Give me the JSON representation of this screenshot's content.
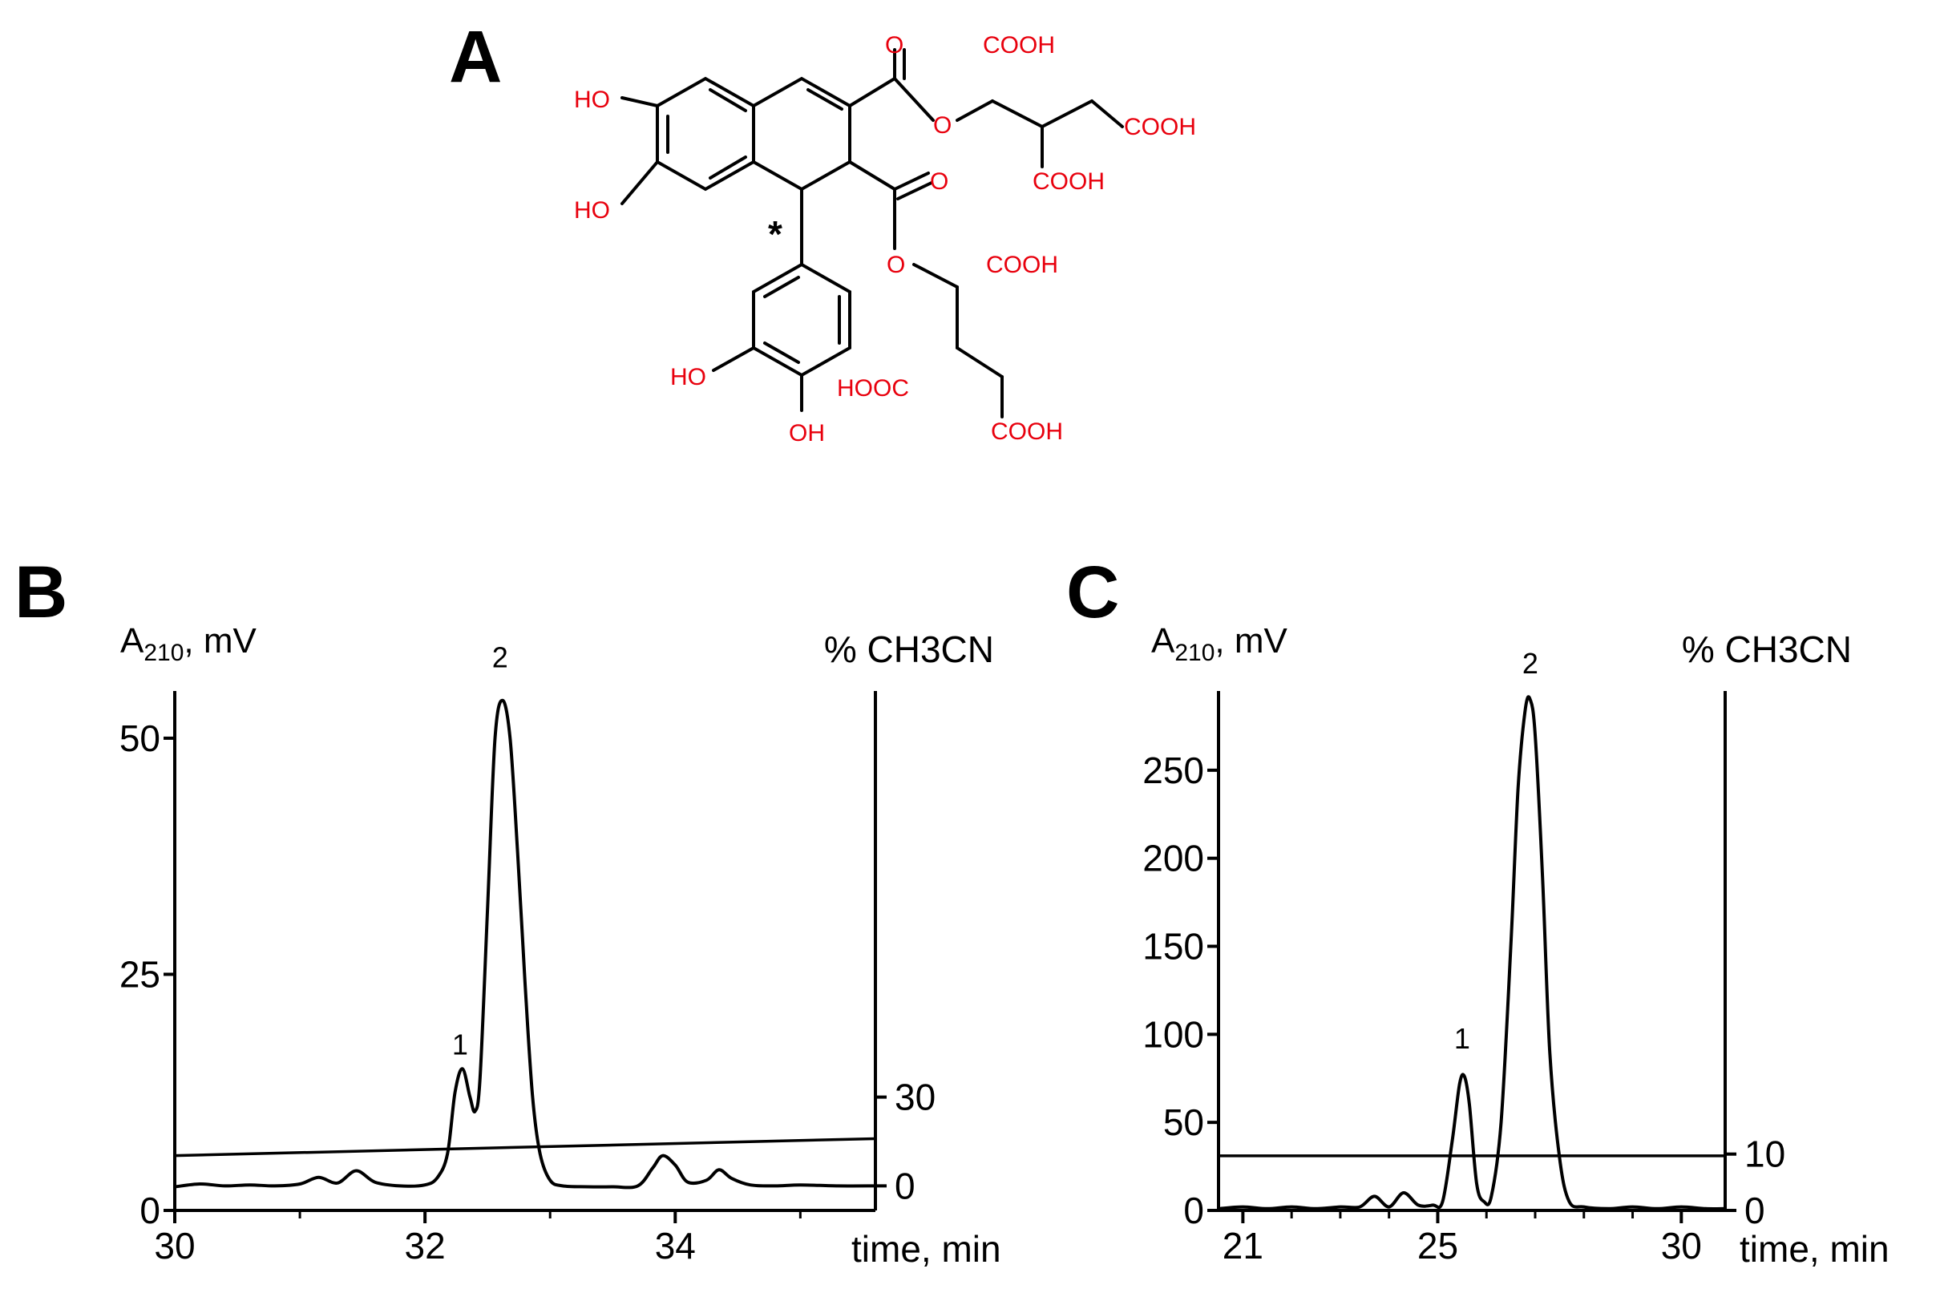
{
  "panel_labels": {
    "a": "A",
    "b": "B",
    "c": "C"
  },
  "structure": {
    "labels": {
      "ho1": "HO",
      "ho2": "HO",
      "ho3": "HO",
      "oh4": "OH",
      "o_top_carbonyl": "O",
      "o_top_ester": "O",
      "o_mid_carbonyl": "O",
      "o_mid_ester": "O",
      "cooh1": "COOH",
      "cooh2": "COOH",
      "cooh3": "COOH",
      "cooh4": "COOH",
      "hooc5": "HOOC",
      "cooh6": "COOH",
      "star": "*"
    },
    "colors": {
      "heteroatom": "#e8000d",
      "bond": "#000000"
    }
  },
  "chart_data": [
    {
      "panel": "B",
      "type": "line",
      "left_axis_label_main": "A",
      "left_axis_label_sub": "210",
      "left_axis_label_rest": ", mV",
      "right_axis_label": "% CH3CN",
      "xlabel": "time, min",
      "xlim": [
        30,
        35.6
      ],
      "ylim": [
        0,
        55
      ],
      "y_ticks": [
        0,
        25,
        50
      ],
      "y_tick_labels": [
        "0",
        "25",
        "50"
      ],
      "x_ticks": [
        30,
        32,
        34
      ],
      "x_tick_labels": [
        "30",
        "32",
        "34"
      ],
      "x_minor_ticks": [
        31,
        33,
        35
      ],
      "right_ticks_y": [
        2.6,
        12
      ],
      "right_tick_labels": [
        "0",
        "30"
      ],
      "peak_labels": [
        {
          "text": "1",
          "x": 32.28,
          "y": 16.5
        },
        {
          "text": "2",
          "x": 32.6,
          "y": 57.5
        }
      ],
      "gradient": {
        "x": [
          30,
          35.6
        ],
        "y": [
          5.8,
          7.6
        ]
      },
      "series": [
        {
          "x": [
            30.0,
            30.2,
            30.4,
            30.6,
            30.8,
            31.0,
            31.15,
            31.3,
            31.45,
            31.6,
            31.8,
            32.0,
            32.1,
            32.18,
            32.24,
            32.3,
            32.36,
            32.4,
            32.44,
            32.5,
            32.56,
            32.62,
            32.68,
            32.74,
            32.8,
            32.86,
            32.92,
            33.0,
            33.1,
            33.3,
            33.5,
            33.7,
            33.82,
            33.9,
            34.0,
            34.1,
            34.25,
            34.35,
            34.45,
            34.6,
            34.8,
            35.0,
            35.3,
            35.6
          ],
          "y": [
            2.5,
            2.8,
            2.6,
            2.7,
            2.6,
            2.8,
            3.5,
            2.9,
            4.2,
            3.0,
            2.6,
            2.7,
            3.5,
            6.0,
            12.5,
            15.0,
            12.0,
            10.5,
            14.0,
            32.0,
            50.0,
            54.0,
            50.0,
            38.0,
            24.0,
            12.0,
            6.0,
            3.2,
            2.6,
            2.5,
            2.5,
            2.6,
            4.5,
            5.8,
            4.8,
            3.0,
            3.2,
            4.3,
            3.4,
            2.7,
            2.6,
            2.7,
            2.6,
            2.6
          ]
        }
      ]
    },
    {
      "panel": "C",
      "type": "line",
      "left_axis_label_main": "A",
      "left_axis_label_sub": "210",
      "left_axis_label_rest": ", mV",
      "right_axis_label": "% CH3CN",
      "xlabel": "time, min",
      "xlim": [
        20.5,
        30.9
      ],
      "ylim": [
        0,
        295
      ],
      "y_ticks": [
        0,
        50,
        100,
        150,
        200,
        250
      ],
      "y_tick_labels": [
        "0",
        "50",
        "100",
        "150",
        "200",
        "250"
      ],
      "x_ticks": [
        21,
        25,
        30
      ],
      "x_tick_labels": [
        "21",
        "25",
        "30"
      ],
      "x_minor_ticks": [
        22,
        23,
        24,
        26,
        27,
        28,
        29
      ],
      "right_ticks_y": [
        0,
        32
      ],
      "right_tick_labels": [
        "0",
        "10"
      ],
      "peak_labels": [
        {
          "text": "1",
          "x": 25.5,
          "y": 92
        },
        {
          "text": "2",
          "x": 26.9,
          "y": 305
        }
      ],
      "gradient": {
        "x": [
          20.5,
          30.9
        ],
        "y": [
          31,
          31
        ]
      },
      "series": [
        {
          "x": [
            20.5,
            21.0,
            21.5,
            22.0,
            22.5,
            23.0,
            23.4,
            23.7,
            24.0,
            24.3,
            24.6,
            24.9,
            25.1,
            25.3,
            25.45,
            25.55,
            25.65,
            25.8,
            25.95,
            26.1,
            26.3,
            26.5,
            26.65,
            26.8,
            26.9,
            27.0,
            27.15,
            27.3,
            27.5,
            27.7,
            28.0,
            28.5,
            29.0,
            29.5,
            30.0,
            30.5,
            30.9
          ],
          "y": [
            1,
            2,
            1,
            2,
            1,
            2,
            2,
            8,
            2,
            10,
            3,
            3,
            5,
            40,
            72,
            76,
            60,
            15,
            5,
            8,
            50,
            150,
            240,
            285,
            290,
            270,
            190,
            90,
            30,
            5,
            2,
            1,
            2,
            1,
            2,
            1,
            1
          ]
        }
      ]
    }
  ]
}
